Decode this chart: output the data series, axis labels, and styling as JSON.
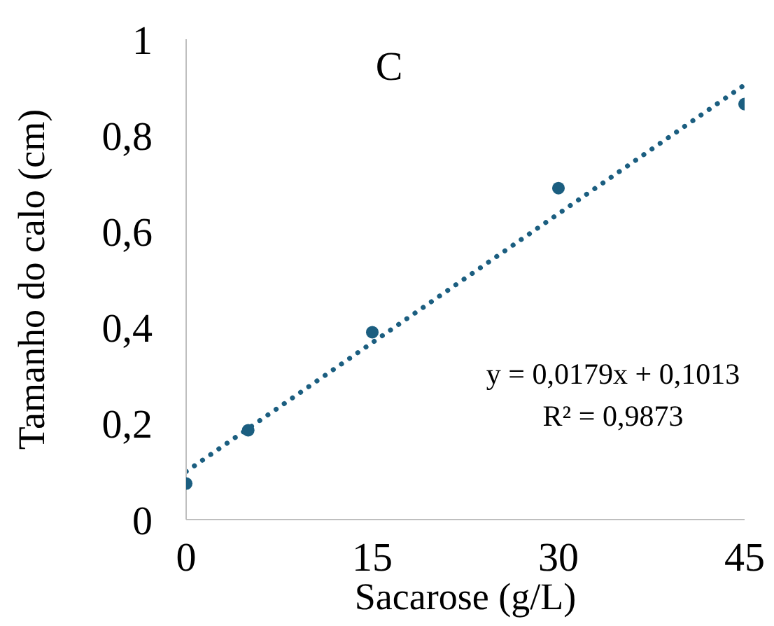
{
  "chart_data": {
    "type": "scatter",
    "title": "C",
    "xlabel": "Sacarose (g/L)",
    "ylabel": "Tamanho do calo (cm)",
    "annotations": [
      "y = 0,0179x + 0,1013",
      "R² = 0,9873"
    ],
    "x": [
      0,
      5,
      15,
      30,
      45
    ],
    "series": [
      {
        "color": "#1b5e80",
        "marker": "circle",
        "values": [
          0.075,
          0.186,
          0.39,
          0.69,
          0.865
        ]
      },
      {
        "type": "line",
        "color": "#1b5e80",
        "x": [
          0,
          45
        ],
        "values": [
          0.1,
          0.905
        ],
        "line_style": "dotted"
      }
    ],
    "xlim": [
      0,
      45
    ],
    "xticks": [
      0,
      15,
      30,
      45
    ],
    "ylim": [
      0,
      1
    ],
    "yticks": [
      0,
      {
        "value": 0.2,
        "label": "0,2"
      },
      {
        "value": 0.4,
        "label": "0,4"
      },
      {
        "value": 0.6,
        "label": "0,6"
      },
      {
        "value": 0.8,
        "label": "0,8"
      },
      1
    ],
    "grid": false
  }
}
